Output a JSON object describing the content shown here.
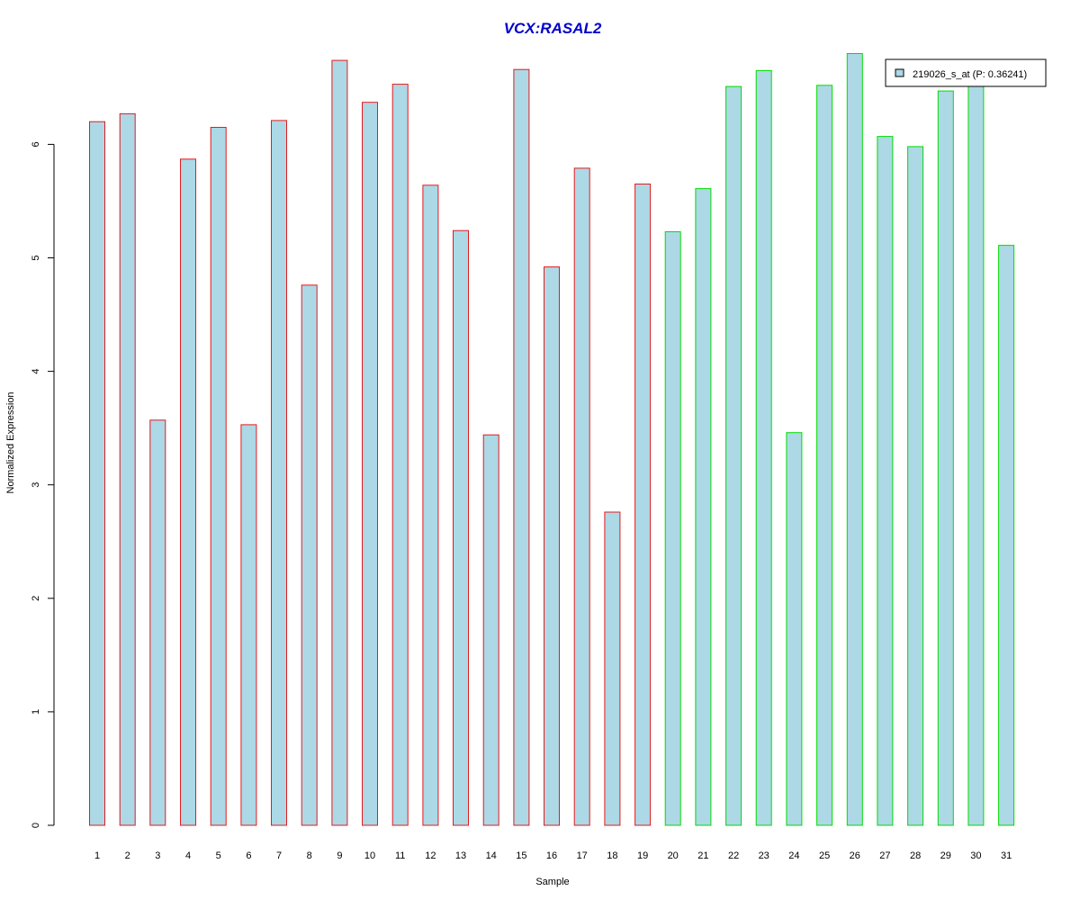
{
  "chart_data": {
    "type": "bar",
    "title": "VCX:RASAL2",
    "xlabel": "Sample",
    "ylabel": "Normalized Expression",
    "categories": [
      "1",
      "2",
      "3",
      "4",
      "5",
      "6",
      "7",
      "8",
      "9",
      "10",
      "11",
      "12",
      "13",
      "14",
      "15",
      "16",
      "17",
      "18",
      "19",
      "20",
      "21",
      "22",
      "23",
      "24",
      "25",
      "26",
      "27",
      "28",
      "29",
      "30",
      "31"
    ],
    "series": [
      {
        "name": "219026_s_at (P: 0.36241)",
        "values": [
          6.2,
          6.27,
          3.57,
          5.87,
          6.15,
          3.53,
          6.21,
          4.76,
          6.74,
          6.37,
          6.53,
          5.64,
          5.24,
          3.44,
          6.66,
          4.92,
          5.79,
          2.76,
          5.65,
          5.23,
          5.61,
          6.51,
          6.65,
          3.46,
          6.52,
          6.8,
          6.07,
          5.98,
          6.47,
          6.53,
          5.11
        ]
      }
    ],
    "groups": [
      {
        "from": 1,
        "to": 19,
        "outline_color": "#e41a1c"
      },
      {
        "from": 20,
        "to": 31,
        "outline_color": "#00dd00"
      }
    ],
    "ylim": [
      0,
      6.8
    ],
    "yticks": [
      0,
      1,
      2,
      3,
      4,
      5,
      6
    ],
    "legend_position": "top-right",
    "grid": false,
    "colors": {
      "bar_fill": "#add8e6",
      "title": "#0000cc",
      "axis": "#000000",
      "legend_border": "#000000"
    }
  }
}
